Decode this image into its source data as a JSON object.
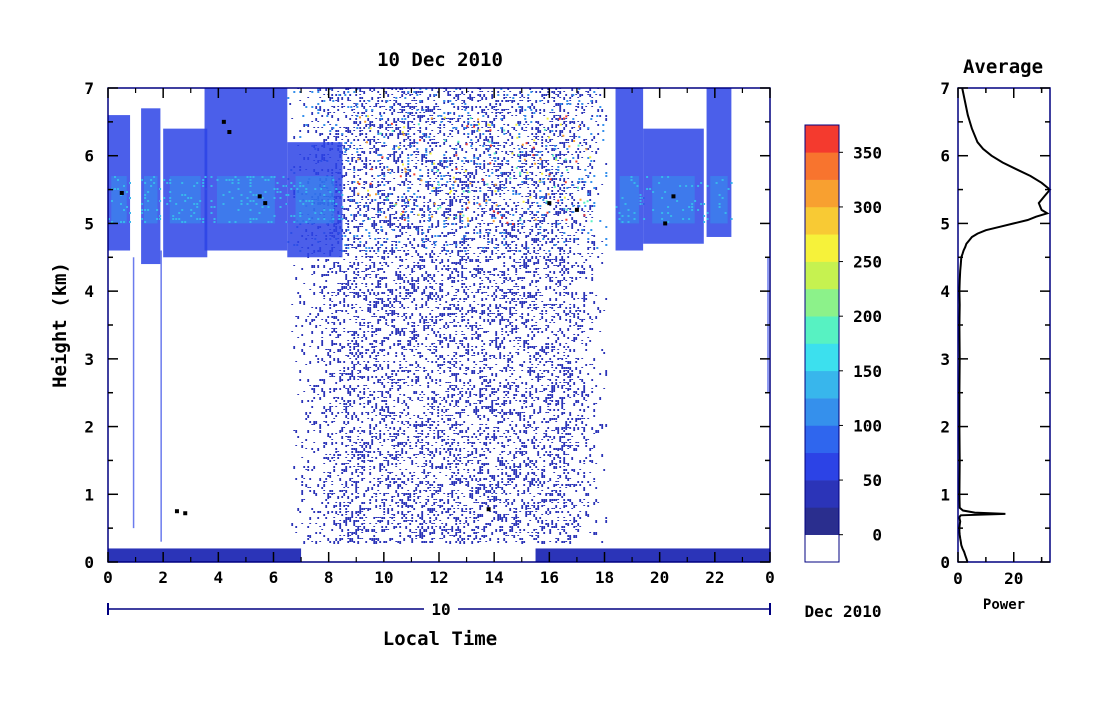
{
  "chart_data": [
    {
      "type": "heatmap",
      "title": "10 Dec 2010",
      "xlabel": "Local Time",
      "ylabel": "Height (km)",
      "xlim": [
        0,
        24
      ],
      "ylim": [
        0,
        7
      ],
      "x_ticks": [
        "0",
        "2",
        "4",
        "6",
        "8",
        "10",
        "12",
        "14",
        "16",
        "18",
        "20",
        "22",
        "0"
      ],
      "y_ticks": [
        "0",
        "1",
        "2",
        "3",
        "4",
        "5",
        "6",
        "7"
      ],
      "date_bar": {
        "day": "10",
        "month_year": "Dec 2010"
      },
      "colorbar": {
        "ticks": [
          "350",
          "300",
          "250",
          "200",
          "150",
          "100",
          "50",
          "0"
        ],
        "colors": [
          "#ffffff",
          "#2a2e8e",
          "#2b34b8",
          "#2c43e6",
          "#2f66ee",
          "#3590ec",
          "#38b6ec",
          "#3ce0ee",
          "#57f2c2",
          "#8cf28a",
          "#c6f250",
          "#f6f23a",
          "#f8ca34",
          "#f8a030",
          "#f8742e",
          "#f43a2e"
        ]
      },
      "features": {
        "upper_cloud_regions": [
          [
            0,
            0.8,
            4.6,
            6.6
          ],
          [
            1.2,
            1.9,
            4.4,
            6.7
          ],
          [
            2.0,
            3.6,
            4.5,
            6.4
          ],
          [
            3.5,
            6.5,
            4.6,
            7.0
          ],
          [
            6.5,
            8.5,
            4.5,
            6.2
          ],
          [
            18.4,
            19.4,
            4.6,
            7.0
          ],
          [
            19.4,
            21.6,
            4.7,
            6.4
          ],
          [
            21.7,
            22.6,
            4.8,
            7.0
          ]
        ],
        "noise_region": [
          6.5,
          18.1,
          0.3,
          7.0
        ],
        "surface_layer_segments": [
          [
            0,
            7,
            0,
            0.2
          ],
          [
            15.5,
            24,
            0,
            0.2
          ]
        ],
        "black_marks": [
          [
            0.5,
            5.45
          ],
          [
            4.2,
            6.5
          ],
          [
            4.4,
            6.35
          ],
          [
            5.5,
            5.4
          ],
          [
            5.7,
            5.3
          ],
          [
            16.0,
            5.3
          ],
          [
            17.0,
            5.2
          ],
          [
            20.5,
            5.4
          ],
          [
            2.5,
            0.75
          ],
          [
            2.8,
            0.72
          ],
          [
            13.8,
            0.78
          ],
          [
            20.2,
            5.0
          ]
        ]
      }
    },
    {
      "type": "line",
      "title": "Average",
      "xlabel": "Power",
      "ylabel": "",
      "xlim": [
        0,
        33
      ],
      "ylim": [
        0,
        7
      ],
      "x_ticks": [
        "0",
        "20"
      ],
      "y_ticks": [
        "0",
        "1",
        "2",
        "3",
        "4",
        "5",
        "6",
        "7"
      ],
      "series": [
        {
          "x": [
            3.4,
            3.0,
            2.6,
            2.2,
            1.6,
            1.2,
            1.0,
            0.8,
            0.6,
            0.5,
            0.5,
            0.6,
            0.8,
            0.5,
            0.6,
            1.0,
            17.0,
            6.0,
            1.8,
            0.6,
            0.5,
            0.6,
            0.5,
            0.5,
            0.6,
            0.5,
            0.6,
            0.5,
            0.6,
            0.8,
            1.0,
            1.2,
            1.6,
            2.0,
            2.6,
            3.0,
            4.0,
            5.0,
            7.0,
            10.0,
            15.0,
            20.0,
            25.0,
            28.0,
            32.0,
            30.0,
            29.0,
            31.0,
            33.0,
            30.0,
            26.0,
            21.0,
            16.0,
            12.0,
            9.0,
            7.0,
            5.0,
            3.5,
            2.5,
            1.5
          ],
          "y": [
            0.0,
            0.05,
            0.1,
            0.15,
            0.2,
            0.25,
            0.3,
            0.35,
            0.4,
            0.45,
            0.5,
            0.55,
            0.6,
            0.65,
            0.67,
            0.69,
            0.71,
            0.73,
            0.76,
            0.8,
            1.0,
            1.5,
            2.0,
            2.5,
            3.0,
            3.5,
            3.8,
            4.0,
            4.15,
            4.3,
            4.4,
            4.5,
            4.55,
            4.6,
            4.65,
            4.7,
            4.75,
            4.8,
            4.85,
            4.9,
            4.95,
            5.0,
            5.05,
            5.1,
            5.15,
            5.2,
            5.3,
            5.4,
            5.5,
            5.6,
            5.7,
            5.8,
            5.9,
            6.0,
            6.1,
            6.2,
            6.4,
            6.6,
            6.8,
            7.0
          ]
        }
      ]
    }
  ]
}
